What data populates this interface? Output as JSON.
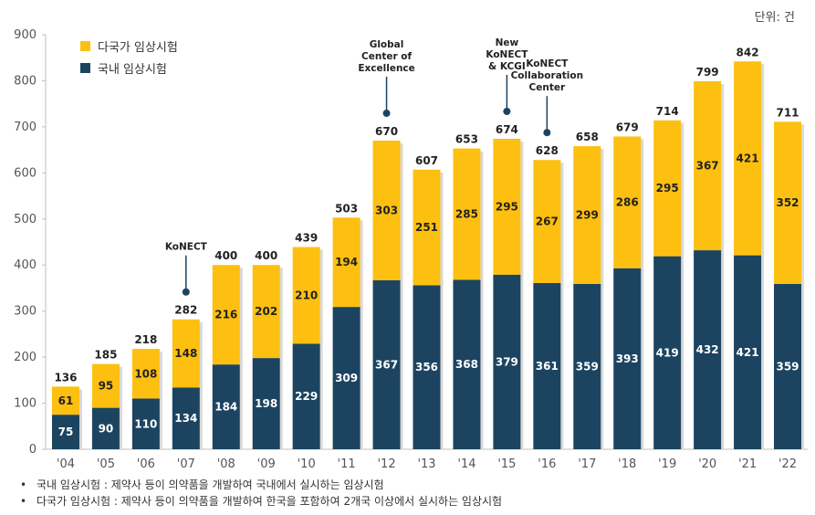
{
  "unit_label": "단위: 건",
  "legend": {
    "multinational": "다국가 임상시험",
    "domestic": "국내 임상시험"
  },
  "colors": {
    "multinational": "#FDC010",
    "domestic": "#1C4461",
    "bar_shadow": "#D9D9D9",
    "marker": "#1C4461"
  },
  "notes": [
    {
      "bullet": "•",
      "text": "국내 임상시험 : 제약사 등이 의약품을 개발하여 국내에서 실시하는 임상시험"
    },
    {
      "bullet": "•",
      "text": "다국가 임상시험 : 제약사 등이 의약품을 개발하여 한국을 포함하여 2개국 이상에서 실시하는 임상시험"
    }
  ],
  "chart_data": {
    "type": "bar",
    "stacked": true,
    "categories": [
      "'04",
      "'05",
      "'06",
      "'07",
      "'08",
      "'09",
      "'10",
      "'11",
      "'12",
      "'13",
      "'14",
      "'15",
      "'16",
      "'17",
      "'18",
      "'19",
      "'20",
      "'21",
      "'22"
    ],
    "series": [
      {
        "name": "국내 임상시험",
        "values": [
          75,
          90,
          110,
          134,
          184,
          198,
          229,
          309,
          367,
          356,
          368,
          379,
          361,
          359,
          393,
          419,
          432,
          421,
          359
        ]
      },
      {
        "name": "다국가 임상시험",
        "values": [
          61,
          95,
          108,
          148,
          216,
          202,
          210,
          194,
          303,
          251,
          285,
          295,
          267,
          299,
          286,
          295,
          367,
          421,
          352
        ]
      }
    ],
    "totals": [
      136,
      185,
      218,
      282,
      400,
      400,
      439,
      503,
      670,
      607,
      653,
      674,
      628,
      658,
      679,
      714,
      799,
      842,
      711
    ],
    "ylim": [
      0,
      900
    ],
    "yticks": [
      0,
      100,
      200,
      300,
      400,
      500,
      600,
      700,
      800,
      900
    ],
    "legend_position": "top-left",
    "annotations": [
      {
        "category_index": 3,
        "lines": [
          "KoNECT"
        ]
      },
      {
        "category_index": 8,
        "lines": [
          "Global",
          "Center of",
          "Excellence"
        ]
      },
      {
        "category_index": 11,
        "lines": [
          "New",
          "KoNECT",
          "& KCGI"
        ]
      },
      {
        "category_index": 12,
        "lines": [
          "KoNECT",
          "Collaboration",
          "Center"
        ]
      }
    ]
  }
}
